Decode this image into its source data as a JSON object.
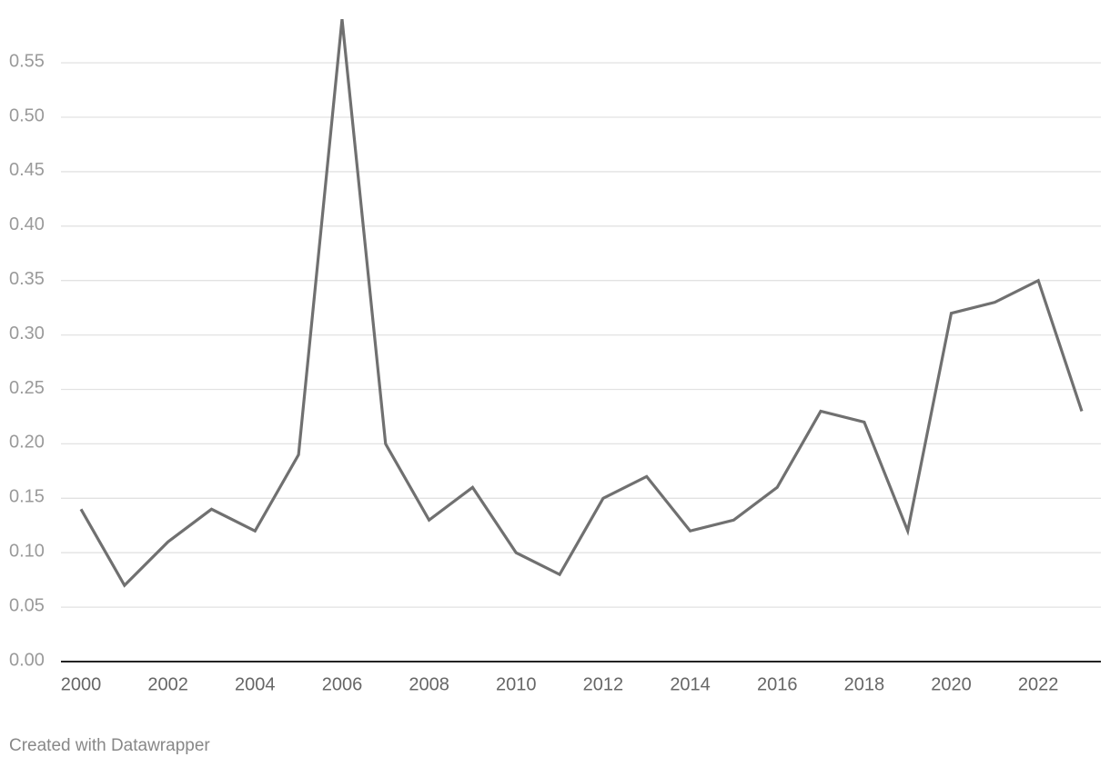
{
  "chart_data": {
    "type": "line",
    "x": [
      2000,
      2001,
      2002,
      2003,
      2004,
      2005,
      2006,
      2007,
      2008,
      2009,
      2010,
      2011,
      2012,
      2013,
      2014,
      2015,
      2016,
      2017,
      2018,
      2019,
      2020,
      2021,
      2022,
      2023
    ],
    "values": [
      0.14,
      0.07,
      0.11,
      0.14,
      0.12,
      0.19,
      0.59,
      0.2,
      0.13,
      0.16,
      0.1,
      0.08,
      0.15,
      0.17,
      0.12,
      0.13,
      0.16,
      0.23,
      0.22,
      0.12,
      0.32,
      0.33,
      0.35,
      0.23
    ],
    "color": "#707070",
    "xlim": [
      2000,
      2023
    ],
    "xticks": [
      2000,
      2002,
      2004,
      2006,
      2008,
      2010,
      2012,
      2014,
      2016,
      2018,
      2020,
      2022
    ],
    "ylim": [
      0,
      0.59
    ],
    "yticks": [
      {
        "value": 0,
        "label": "0.00"
      },
      0.05,
      {
        "value": 0.1,
        "label": "0.10"
      },
      0.15,
      {
        "value": 0.2,
        "label": "0.20"
      },
      0.25,
      {
        "value": 0.3,
        "label": "0.30"
      },
      0.35,
      {
        "value": 0.4,
        "label": "0.40"
      },
      0.45,
      {
        "value": 0.5,
        "label": "0.50"
      },
      0.55
    ],
    "grid": true,
    "footer": "Created with Datawrapper"
  }
}
